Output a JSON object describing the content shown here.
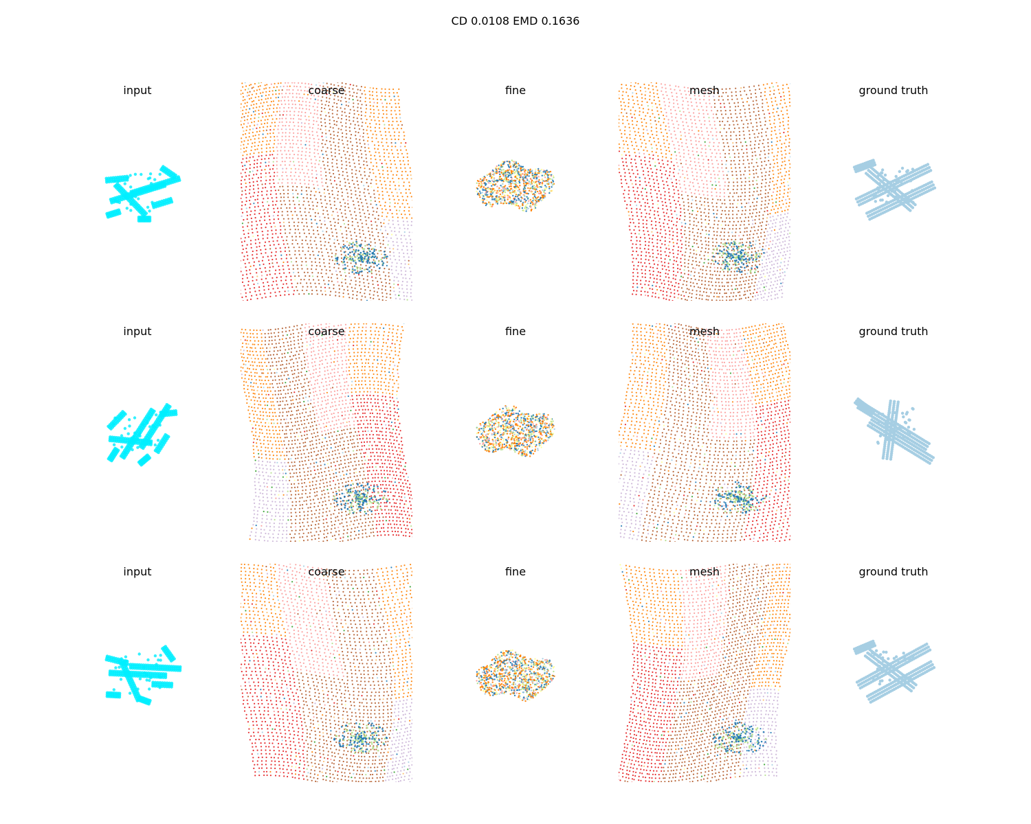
{
  "figure": {
    "title": "CD 0.0108  EMD 0.1636",
    "rows": [
      {
        "panels": [
          {
            "title": "input",
            "kind": "input"
          },
          {
            "title": "coarse",
            "kind": "coarse"
          },
          {
            "title": "fine",
            "kind": "fine"
          },
          {
            "title": "mesh",
            "kind": "mesh"
          },
          {
            "title": "ground truth",
            "kind": "gt"
          }
        ]
      },
      {
        "panels": [
          {
            "title": "input",
            "kind": "input"
          },
          {
            "title": "coarse",
            "kind": "coarse"
          },
          {
            "title": "fine",
            "kind": "fine"
          },
          {
            "title": "mesh",
            "kind": "mesh"
          },
          {
            "title": "ground truth",
            "kind": "gt"
          }
        ]
      },
      {
        "panels": [
          {
            "title": "input",
            "kind": "input"
          },
          {
            "title": "coarse",
            "kind": "coarse"
          },
          {
            "title": "fine",
            "kind": "fine"
          },
          {
            "title": "mesh",
            "kind": "mesh"
          },
          {
            "title": "ground truth",
            "kind": "gt"
          }
        ]
      }
    ]
  },
  "colors": {
    "input": "#00eeff",
    "ground_truth": "#a6cee3",
    "palette": [
      "#a6cee3",
      "#1f78b4",
      "#b2df8a",
      "#33a02c",
      "#fb9a99",
      "#e31a1c",
      "#fdbf6f",
      "#ff7f00",
      "#cab2d6",
      "#ffff99",
      "#b15928"
    ]
  }
}
